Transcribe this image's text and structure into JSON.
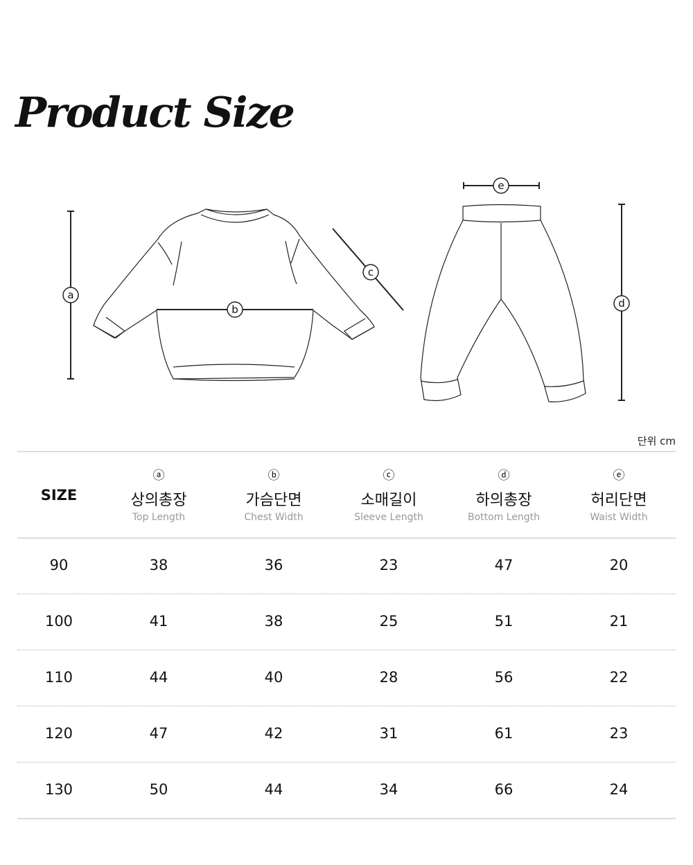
{
  "title": "Product Size",
  "diagram": {
    "top_labels": [
      "a",
      "b",
      "c"
    ],
    "bottom_labels": [
      "e",
      "d"
    ]
  },
  "unit_label": "단위 cm",
  "table": {
    "size_header": "SIZE",
    "columns": [
      {
        "mark": "ⓐ",
        "ko": "상의총장",
        "en": "Top Length"
      },
      {
        "mark": "ⓑ",
        "ko": "가슴단면",
        "en": "Chest Width"
      },
      {
        "mark": "ⓒ",
        "ko": "소매길이",
        "en": "Sleeve Length"
      },
      {
        "mark": "ⓓ",
        "ko": "하의총장",
        "en": "Bottom Length"
      },
      {
        "mark": "ⓔ",
        "ko": "허리단면",
        "en": "Waist Width"
      }
    ],
    "rows": [
      {
        "size": "90",
        "values": [
          "38",
          "36",
          "23",
          "47",
          "20"
        ]
      },
      {
        "size": "100",
        "values": [
          "41",
          "38",
          "25",
          "51",
          "21"
        ]
      },
      {
        "size": "110",
        "values": [
          "44",
          "40",
          "28",
          "56",
          "22"
        ]
      },
      {
        "size": "120",
        "values": [
          "47",
          "42",
          "31",
          "61",
          "23"
        ]
      },
      {
        "size": "130",
        "values": [
          "50",
          "44",
          "34",
          "66",
          "24"
        ]
      }
    ]
  }
}
